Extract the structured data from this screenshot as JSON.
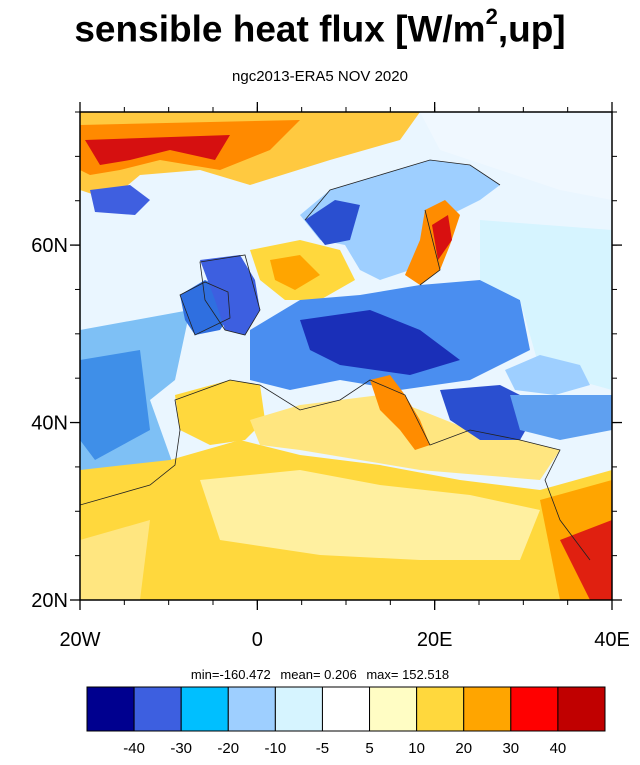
{
  "title": {
    "main": "sensible heat flux [W/m",
    "sup": "2",
    "tail": ",up]"
  },
  "subtitle": "ngc2013-ERA5  NOV 2020",
  "map": {
    "lon_range": [
      -20,
      40
    ],
    "lat_range": [
      20,
      75
    ],
    "lat_ticks": [
      {
        "value": 20,
        "label": "20N"
      },
      {
        "value": 40,
        "label": "40N"
      },
      {
        "value": 60,
        "label": "60N"
      }
    ],
    "lon_ticks": [
      {
        "value": -20,
        "label": "20W"
      },
      {
        "value": 0,
        "label": "0"
      },
      {
        "value": 20,
        "label": "20E"
      },
      {
        "value": 40,
        "label": "40E"
      }
    ]
  },
  "stats": {
    "min": "min=-160.472",
    "mean": "mean=   0.206",
    "max": "max= 152.518"
  },
  "colorbar": {
    "colors": [
      "#00008f",
      "#3d5fe0",
      "#00bfff",
      "#9ecfff",
      "#d6f4ff",
      "#ffffff",
      "#fffdc4",
      "#ffd83d",
      "#ffa500",
      "#ff0000",
      "#c00000"
    ],
    "labels": [
      "-40",
      "-30",
      "-20",
      "-10",
      "-5",
      "5",
      "10",
      "20",
      "30",
      "40"
    ]
  },
  "colors": {
    "ocean_neutral": "#ffffff",
    "frame": "#000000"
  }
}
